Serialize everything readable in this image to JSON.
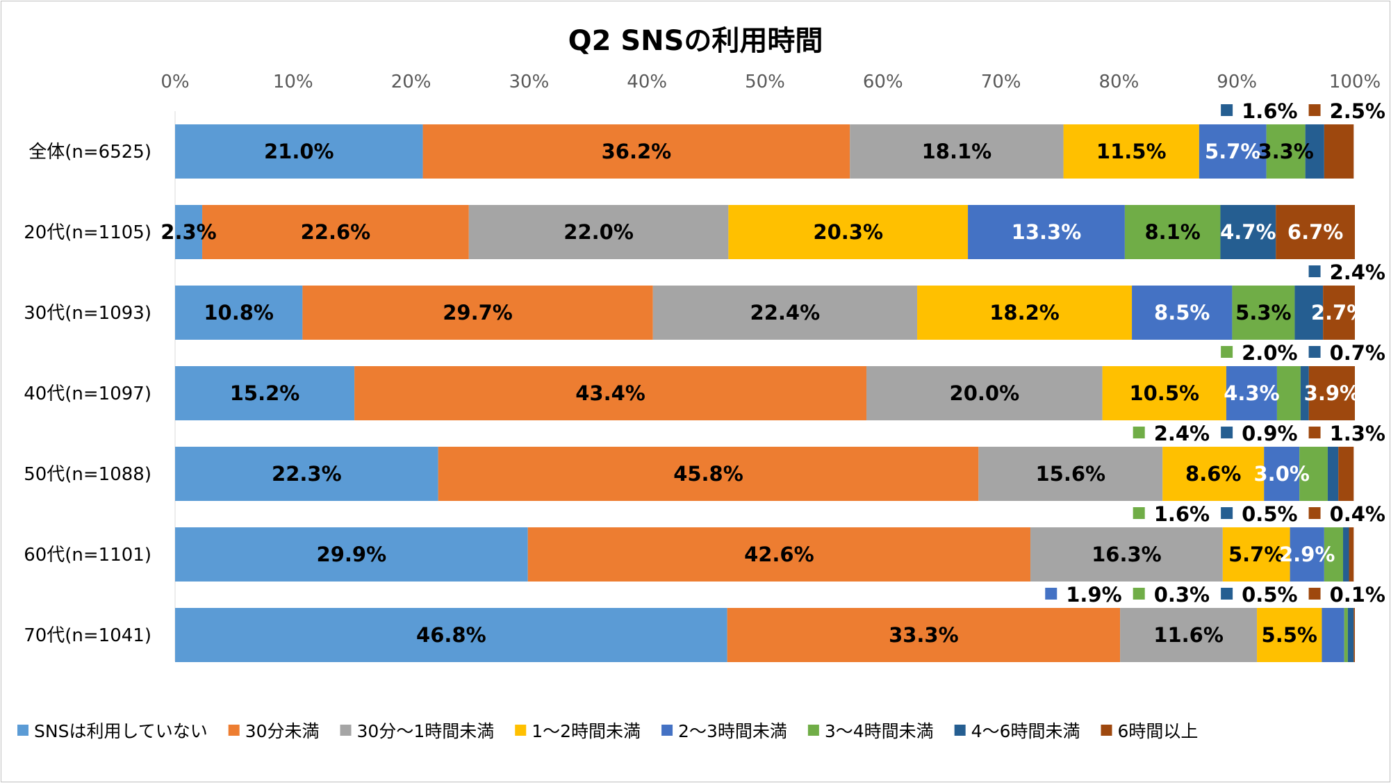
{
  "chart_data": {
    "type": "bar",
    "orientation": "horizontal",
    "stacked": "percent",
    "title": "Q2 SNSの利用時間",
    "xlim": [
      0,
      100
    ],
    "x_ticks": [
      "0%",
      "10%",
      "20%",
      "30%",
      "40%",
      "50%",
      "60%",
      "70%",
      "80%",
      "90%",
      "100%"
    ],
    "grid": false,
    "legend_position": "bottom",
    "categories": [
      "全体(n=6525)",
      "20代(n=1105)",
      "30代(n=1093)",
      "40代(n=1097)",
      "50代(n=1088)",
      "60代(n=1101)",
      "70代(n=1041)"
    ],
    "series": [
      {
        "name": "SNSは利用していない",
        "color": "#5b9bd5",
        "values": [
          21.0,
          2.3,
          10.8,
          15.2,
          22.3,
          29.9,
          46.8
        ],
        "labels": [
          "21.0%",
          "2.3%",
          "10.8%",
          "15.2%",
          "22.3%",
          "29.9%",
          "46.8%"
        ]
      },
      {
        "name": "30分未満",
        "color": "#ed7d31",
        "values": [
          36.2,
          22.6,
          29.7,
          43.4,
          45.8,
          42.6,
          33.3
        ],
        "labels": [
          "36.2%",
          "22.6%",
          "29.7%",
          "43.4%",
          "45.8%",
          "42.6%",
          "33.3%"
        ]
      },
      {
        "name": "30分～1時間未満",
        "color": "#a5a5a5",
        "values": [
          18.1,
          22.0,
          22.4,
          20.0,
          15.6,
          16.3,
          11.6
        ],
        "labels": [
          "18.1%",
          "22.0%",
          "22.4%",
          "20.0%",
          "15.6%",
          "16.3%",
          "11.6%"
        ]
      },
      {
        "name": "1～2時間未満",
        "color": "#ffc000",
        "values": [
          11.5,
          20.3,
          18.2,
          10.5,
          8.6,
          5.7,
          5.5
        ],
        "labels": [
          "11.5%",
          "20.3%",
          "18.2%",
          "10.5%",
          "8.6%",
          "5.7%",
          "5.5%"
        ]
      },
      {
        "name": "2～3時間未満",
        "color": "#4472c4",
        "values": [
          5.7,
          13.3,
          8.5,
          4.3,
          3.0,
          2.9,
          1.9
        ],
        "labels": [
          "5.7%",
          "13.3%",
          "8.5%",
          "4.3%",
          "3.0%",
          "2.9%",
          "1.9%"
        ]
      },
      {
        "name": "3～4時間未満",
        "color": "#70ad47",
        "values": [
          3.3,
          8.1,
          5.3,
          2.0,
          2.4,
          1.6,
          0.3
        ],
        "labels": [
          "3.3%",
          "8.1%",
          "5.3%",
          "2.0%",
          "2.4%",
          "1.6%",
          "0.3%"
        ]
      },
      {
        "name": "4～6時間未満",
        "color": "#255e91",
        "values": [
          1.6,
          4.7,
          2.4,
          0.7,
          0.9,
          0.5,
          0.5
        ],
        "labels": [
          "1.6%",
          "4.7%",
          "2.4%",
          "0.7%",
          "0.9%",
          "0.5%",
          "0.5%"
        ]
      },
      {
        "name": "6時間以上",
        "color": "#9e480e",
        "values": [
          2.5,
          6.7,
          2.7,
          3.9,
          1.3,
          0.4,
          0.1
        ],
        "labels": [
          "2.5%",
          "6.7%",
          "2.7%",
          "3.9%",
          "1.3%",
          "0.4%",
          "0.1%"
        ]
      }
    ]
  }
}
